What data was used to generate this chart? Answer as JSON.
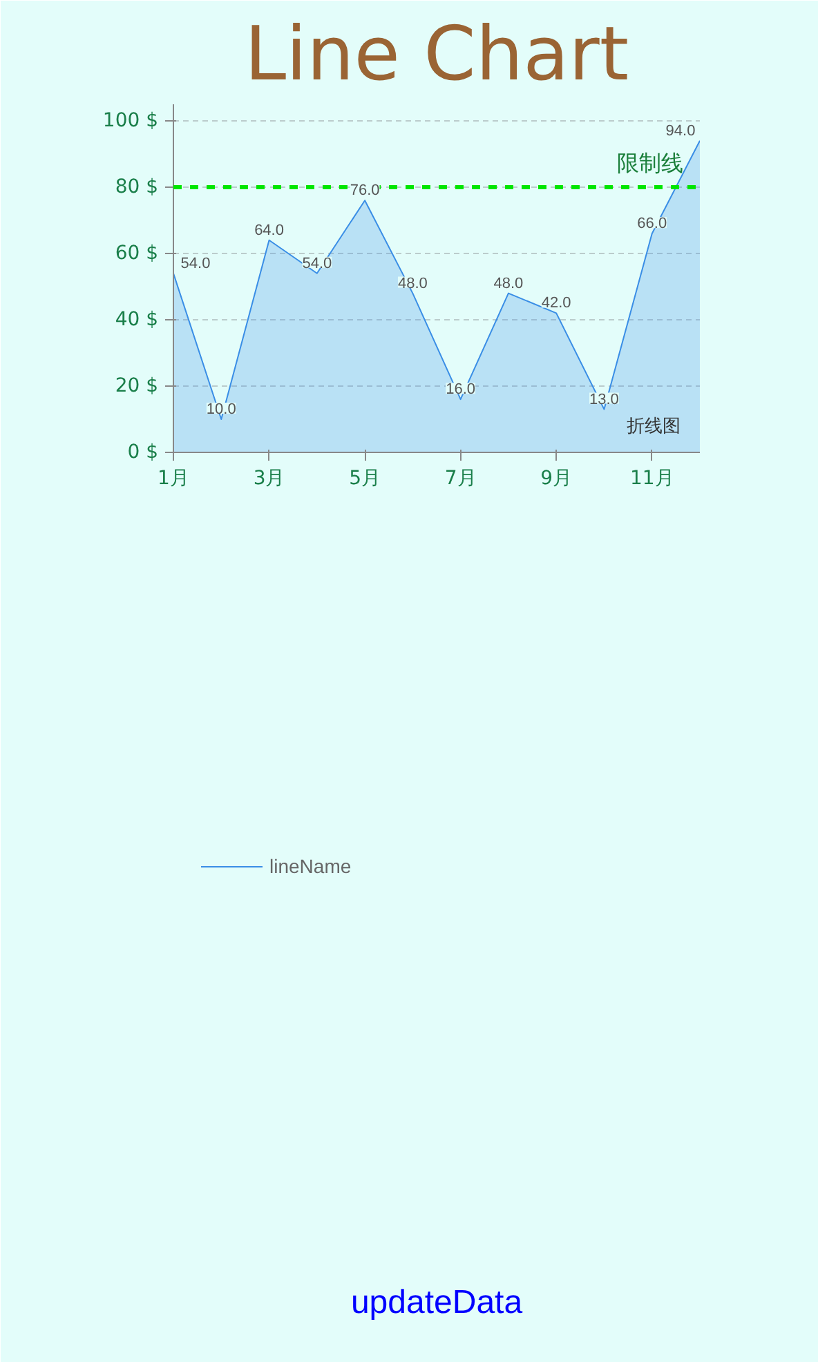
{
  "chart_data": {
    "type": "area",
    "title": "Line Chart",
    "categories": [
      "1月",
      null,
      "3月",
      null,
      "5月",
      null,
      "7月",
      null,
      "9月",
      null,
      "11月",
      null
    ],
    "series": [
      {
        "name": "lineName",
        "color": "#3a8ee6",
        "values": [
          54,
          10,
          64,
          54,
          76,
          48,
          16,
          48,
          42,
          13,
          66,
          94
        ],
        "value_labels": [
          "54.0",
          "10.0",
          "64.0",
          "54.0",
          "76.0",
          "48.0",
          "16.0",
          "48.0",
          "42.0",
          "13.0",
          "66.0",
          "94.0"
        ]
      }
    ],
    "ylim": [
      0,
      105
    ],
    "yticks": [
      {
        "value": 0,
        "label": "0 $"
      },
      {
        "value": 20,
        "label": "20 $"
      },
      {
        "value": 40,
        "label": "40 $"
      },
      {
        "value": 60,
        "label": "60 $"
      },
      {
        "value": 80,
        "label": "80 $"
      },
      {
        "value": 100,
        "label": "100 $"
      }
    ],
    "grid": "y",
    "legend": "bottom left",
    "marker": "none",
    "line_style": "solid",
    "ref_lines": [
      {
        "axis": "y",
        "value": 80,
        "label": "限制线",
        "color": "#00e600",
        "line_style": "dashed"
      }
    ],
    "annotations": [
      "折线图",
      "updateData"
    ]
  }
}
